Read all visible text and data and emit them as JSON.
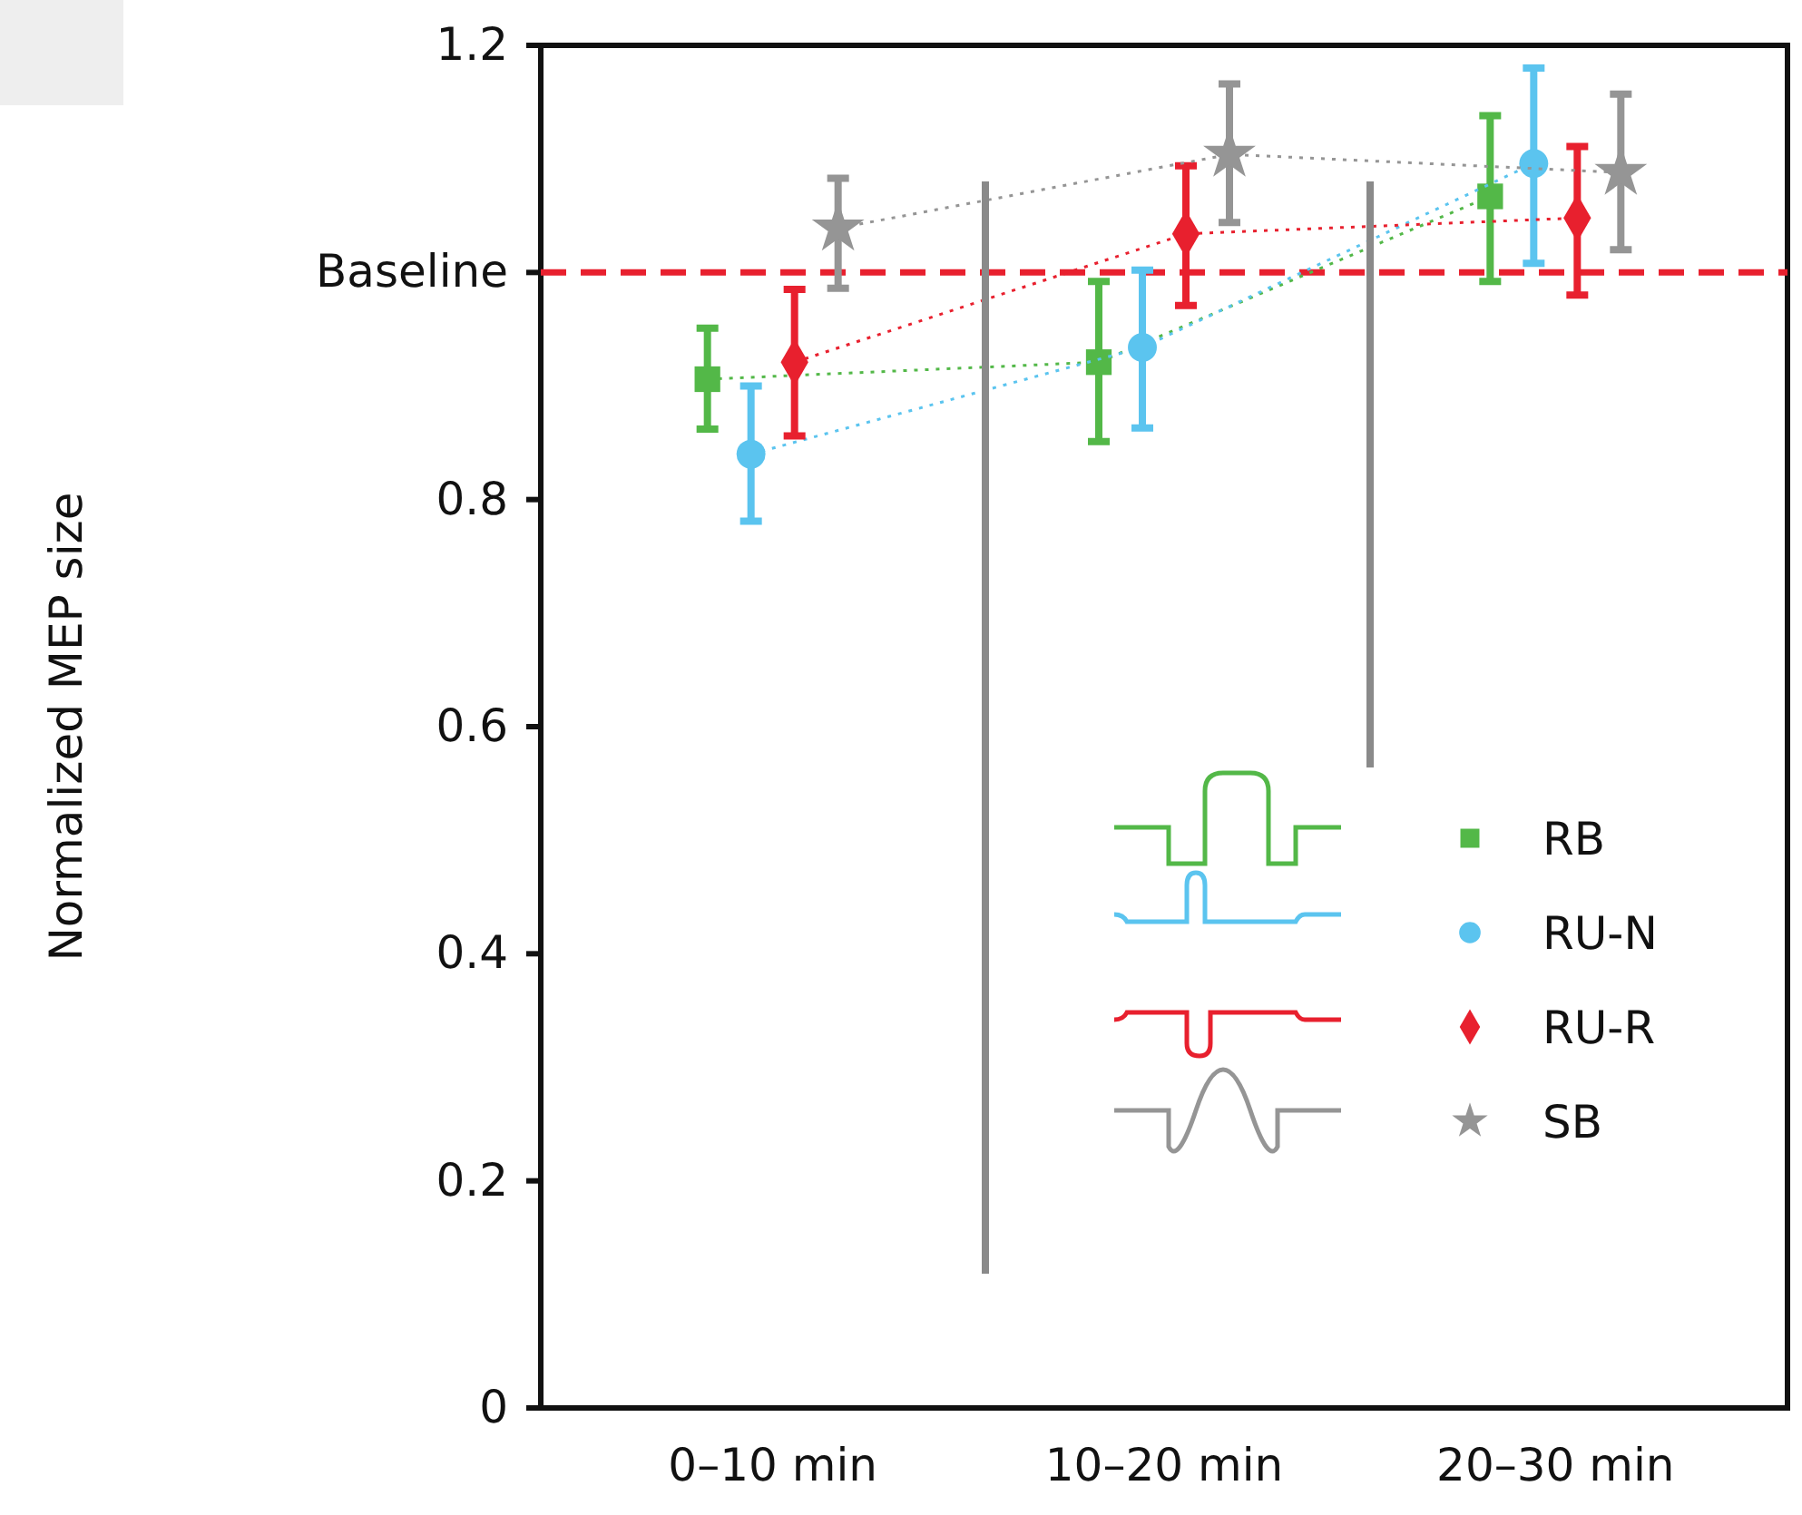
{
  "chart_data": {
    "type": "line",
    "ylabel": "Normalized MEP size",
    "categories": [
      "0–10 min",
      "10–20 min",
      "20–30 min"
    ],
    "ylim": [
      0,
      1.2
    ],
    "yticks": [
      0,
      0.2,
      0.4,
      0.6,
      0.8,
      {
        "value": 1,
        "label": "Baseline"
      },
      1.2
    ],
    "line_style": "dotted",
    "legend": "bottom right",
    "grid": false,
    "ref_lines": [
      {
        "axis": "y",
        "value": 1,
        "color": "#e8202e",
        "line_style": "dashed"
      }
    ],
    "series": [
      {
        "name": "RB",
        "color": "#53b848",
        "marker": "square",
        "values": [
          0.906,
          0.921,
          1.067
        ],
        "errors": [
          [
            0.862,
            0.951
          ],
          [
            0.851,
            0.992
          ],
          [
            0.992,
            1.138
          ]
        ]
      },
      {
        "name": "RU-N",
        "color": "#5bc4ef",
        "marker": "circle",
        "values": [
          0.84,
          0.934,
          1.096
        ],
        "errors": [
          [
            0.781,
            0.9
          ],
          [
            0.863,
            1.002
          ],
          [
            1.008,
            1.18
          ]
        ]
      },
      {
        "name": "RU-R",
        "color": "#e8202e",
        "marker": "diamond",
        "values": [
          0.921,
          1.034,
          1.048
        ],
        "errors": [
          [
            0.856,
            0.985
          ],
          [
            0.971,
            1.094
          ],
          [
            0.98,
            1.111
          ]
        ]
      },
      {
        "name": "SB",
        "color": "#959595",
        "marker": "star",
        "values": [
          1.039,
          1.104,
          1.088
        ],
        "errors": [
          [
            0.986,
            1.083
          ],
          [
            1.044,
            1.166
          ],
          [
            1.02,
            1.157
          ]
        ]
      }
    ]
  }
}
